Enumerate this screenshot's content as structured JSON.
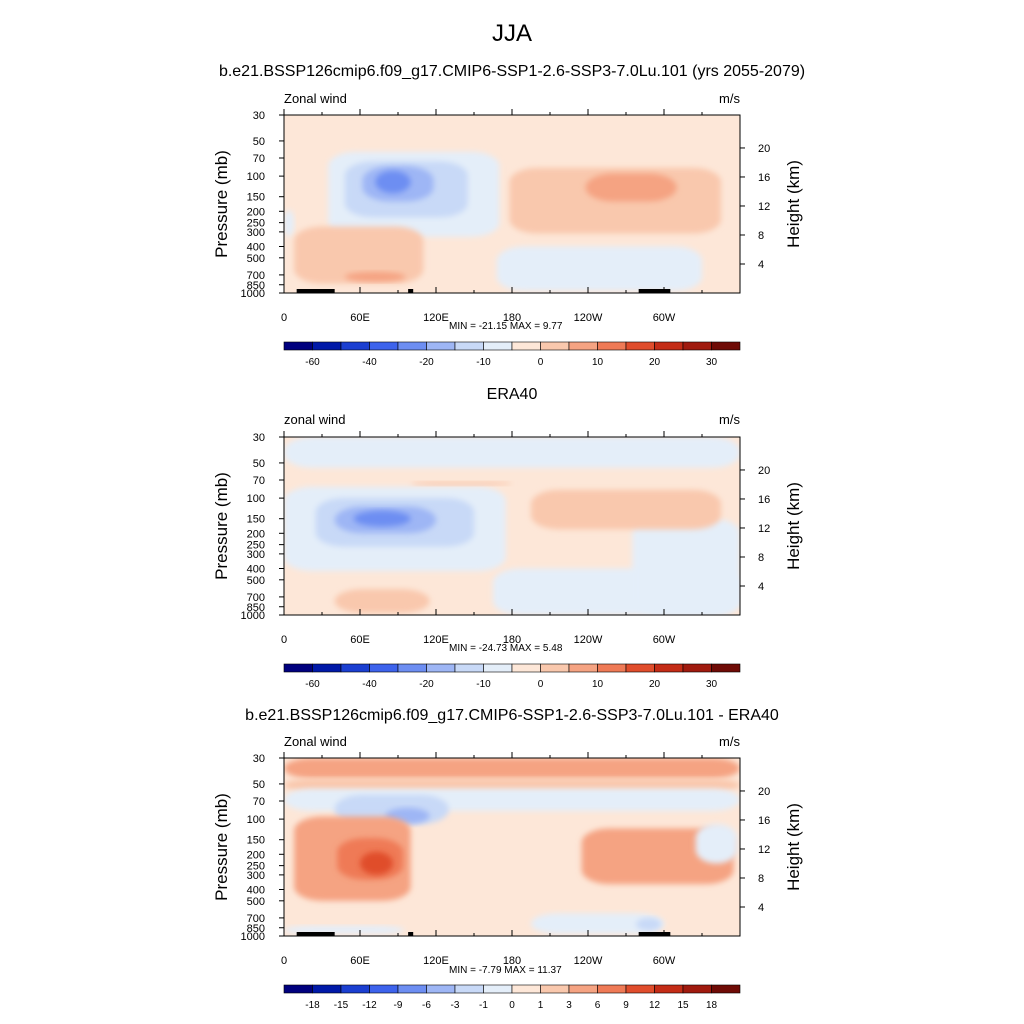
{
  "main_title": "JJA",
  "chart_data": [
    {
      "type": "heatmap",
      "title": "b.e21.BSSP126cmip6.f09_g17.CMIP6-SSP1-2.6-SSP3-7.0Lu.101 (yrs 2055-2079)",
      "left_label": "Zonal wind",
      "right_label": "m/s",
      "ylabel": "Pressure (mb)",
      "y2label": "Height (km)",
      "xticks": [
        "0",
        "60E",
        "120E",
        "180",
        "120W",
        "60W"
      ],
      "yticks": [
        "30",
        "50",
        "70",
        "100",
        "150",
        "200",
        "250",
        "300",
        "400",
        "500",
        "700",
        "850",
        "1000"
      ],
      "y2ticks": [
        "20",
        "16",
        "12",
        "8",
        "4"
      ],
      "min_max": "MIN = -21.15  MAX =   9.77",
      "colorbar": {
        "labels": [
          "-60",
          "-40",
          "-20",
          "-10",
          "0",
          "10",
          "20",
          "30"
        ],
        "colors": [
          "#00007e",
          "#0019a8",
          "#1b3fd1",
          "#3d63ec",
          "#6d8ef2",
          "#9eb6f5",
          "#c8d9f7",
          "#e4eef9",
          "#fde7d8",
          "#f9c8ad",
          "#f5a382",
          "#ef7a56",
          "#e04d2c",
          "#c42c16",
          "#a01a0e",
          "#6f0b06"
        ]
      },
      "background": "#fde7d8",
      "features": [
        {
          "level": 7,
          "lon": [
            35,
            170
          ],
          "p": [
            62,
            330
          ]
        },
        {
          "level": 6,
          "lon": [
            48,
            145
          ],
          "p": [
            75,
            225
          ]
        },
        {
          "level": 5,
          "lon": [
            62,
            118
          ],
          "p": [
            82,
            165
          ]
        },
        {
          "level": 4,
          "lon": [
            72,
            100
          ],
          "p": [
            90,
            140
          ]
        },
        {
          "level": 7,
          "lon": [
            168,
            330
          ],
          "p": [
            400,
            960
          ]
        },
        {
          "level": 7,
          "lon": [
            0,
            8
          ],
          "p": [
            195,
            330
          ]
        },
        {
          "level": 9,
          "lon": [
            178,
            345
          ],
          "p": [
            85,
            310
          ]
        },
        {
          "level": 10,
          "lon": [
            238,
            310
          ],
          "p": [
            95,
            165
          ]
        },
        {
          "level": 9,
          "lon": [
            8,
            110
          ],
          "p": [
            270,
            830
          ]
        },
        {
          "level": 10,
          "lon": [
            48,
            96
          ],
          "p": [
            660,
            800
          ]
        }
      ],
      "topography": [
        [
          10,
          40
        ],
        [
          28,
          34
        ],
        [
          98,
          102
        ],
        [
          280,
          305
        ]
      ]
    },
    {
      "type": "heatmap",
      "title": "ERA40",
      "left_label": "zonal wind",
      "right_label": "m/s",
      "ylabel": "Pressure (mb)",
      "y2label": "Height (km)",
      "xticks": [
        "0",
        "60E",
        "120E",
        "180",
        "120W",
        "60W"
      ],
      "yticks": [
        "30",
        "50",
        "70",
        "100",
        "150",
        "200",
        "250",
        "300",
        "400",
        "500",
        "700",
        "850",
        "1000"
      ],
      "y2ticks": [
        "20",
        "16",
        "12",
        "8",
        "4"
      ],
      "min_max": "MIN = -24.73  MAX =   5.48",
      "colorbar": {
        "labels": [
          "-60",
          "-40",
          "-20",
          "-10",
          "0",
          "10",
          "20",
          "30"
        ],
        "colors": [
          "#00007e",
          "#0019a8",
          "#1b3fd1",
          "#3d63ec",
          "#6d8ef2",
          "#9eb6f5",
          "#c8d9f7",
          "#e4eef9",
          "#fde7d8",
          "#f9c8ad",
          "#f5a382",
          "#ef7a56",
          "#e04d2c",
          "#c42c16",
          "#a01a0e",
          "#6f0b06"
        ]
      },
      "background": "#fde7d8",
      "features": [
        {
          "level": 7,
          "lon": [
            0,
            360
          ],
          "p": [
            30,
            55
          ]
        },
        {
          "level": 7,
          "lon": [
            0,
            175
          ],
          "p": [
            80,
            420
          ]
        },
        {
          "level": 6,
          "lon": [
            25,
            150
          ],
          "p": [
            100,
            260
          ]
        },
        {
          "level": 5,
          "lon": [
            40,
            120
          ],
          "p": [
            118,
            200
          ]
        },
        {
          "level": 4,
          "lon": [
            55,
            100
          ],
          "p": [
            128,
            175
          ]
        },
        {
          "level": 7,
          "lon": [
            165,
            360
          ],
          "p": [
            400,
            1000
          ]
        },
        {
          "level": 7,
          "lon": [
            275,
            360
          ],
          "p": [
            150,
            1000
          ]
        },
        {
          "level": 9,
          "lon": [
            195,
            345
          ],
          "p": [
            85,
            185
          ]
        },
        {
          "level": 9,
          "lon": [
            40,
            115
          ],
          "p": [
            600,
            960
          ]
        },
        {
          "level": 9,
          "lon": [
            100,
            180
          ],
          "p": [
            72,
            78
          ]
        }
      ],
      "topography": []
    },
    {
      "type": "heatmap",
      "title": "b.e21.BSSP126cmip6.f09_g17.CMIP6-SSP1-2.6-SSP3-7.0Lu.101 - ERA40",
      "left_label": "Zonal wind",
      "right_label": "m/s",
      "ylabel": "Pressure (mb)",
      "y2label": "Height (km)",
      "xticks": [
        "0",
        "60E",
        "120E",
        "180",
        "120W",
        "60W"
      ],
      "yticks": [
        "30",
        "50",
        "70",
        "100",
        "150",
        "200",
        "250",
        "300",
        "400",
        "500",
        "700",
        "850",
        "1000"
      ],
      "y2ticks": [
        "20",
        "16",
        "12",
        "8",
        "4"
      ],
      "min_max": "MIN = -7.79  MAX = 11.37",
      "colorbar": {
        "labels": [
          "-18",
          "-15",
          "-12",
          "-9",
          "-6",
          "-3",
          "-1",
          "0",
          "1",
          "3",
          "6",
          "9",
          "12",
          "15",
          "18"
        ],
        "colors": [
          "#00007e",
          "#0019a8",
          "#1b3fd1",
          "#3d63ec",
          "#6d8ef2",
          "#9eb6f5",
          "#c8d9f7",
          "#e4eef9",
          "#fde7d8",
          "#f9c8ad",
          "#f5a382",
          "#ef7a56",
          "#e04d2c",
          "#c42c16",
          "#a01a0e",
          "#6f0b06"
        ]
      },
      "background": "#fde7d8",
      "features": [
        {
          "level": 10,
          "lon": [
            0,
            360
          ],
          "p": [
            30,
            45
          ]
        },
        {
          "level": 9,
          "lon": [
            0,
            360
          ],
          "p": [
            45,
            58
          ]
        },
        {
          "level": 7,
          "lon": [
            0,
            360
          ],
          "p": [
            55,
            85
          ]
        },
        {
          "level": 6,
          "lon": [
            40,
            130
          ],
          "p": [
            62,
            110
          ]
        },
        {
          "level": 5,
          "lon": [
            80,
            115
          ],
          "p": [
            80,
            110
          ]
        },
        {
          "level": 10,
          "lon": [
            8,
            100
          ],
          "p": [
            95,
            500
          ]
        },
        {
          "level": 11,
          "lon": [
            42,
            94
          ],
          "p": [
            145,
            330
          ]
        },
        {
          "level": 12,
          "lon": [
            60,
            86
          ],
          "p": [
            190,
            300
          ]
        },
        {
          "level": 10,
          "lon": [
            235,
            355
          ],
          "p": [
            120,
            360
          ]
        },
        {
          "level": 7,
          "lon": [
            195,
            300
          ],
          "p": [
            640,
            960
          ]
        },
        {
          "level": 6,
          "lon": [
            278,
            298
          ],
          "p": [
            700,
            900
          ]
        },
        {
          "level": 7,
          "lon": [
            0,
            95
          ],
          "p": [
            820,
            960
          ]
        },
        {
          "level": 7,
          "lon": [
            325,
            358
          ],
          "p": [
            110,
            240
          ]
        }
      ],
      "topography": [
        [
          10,
          40
        ],
        [
          28,
          34
        ],
        [
          98,
          102
        ],
        [
          280,
          305
        ]
      ]
    }
  ]
}
